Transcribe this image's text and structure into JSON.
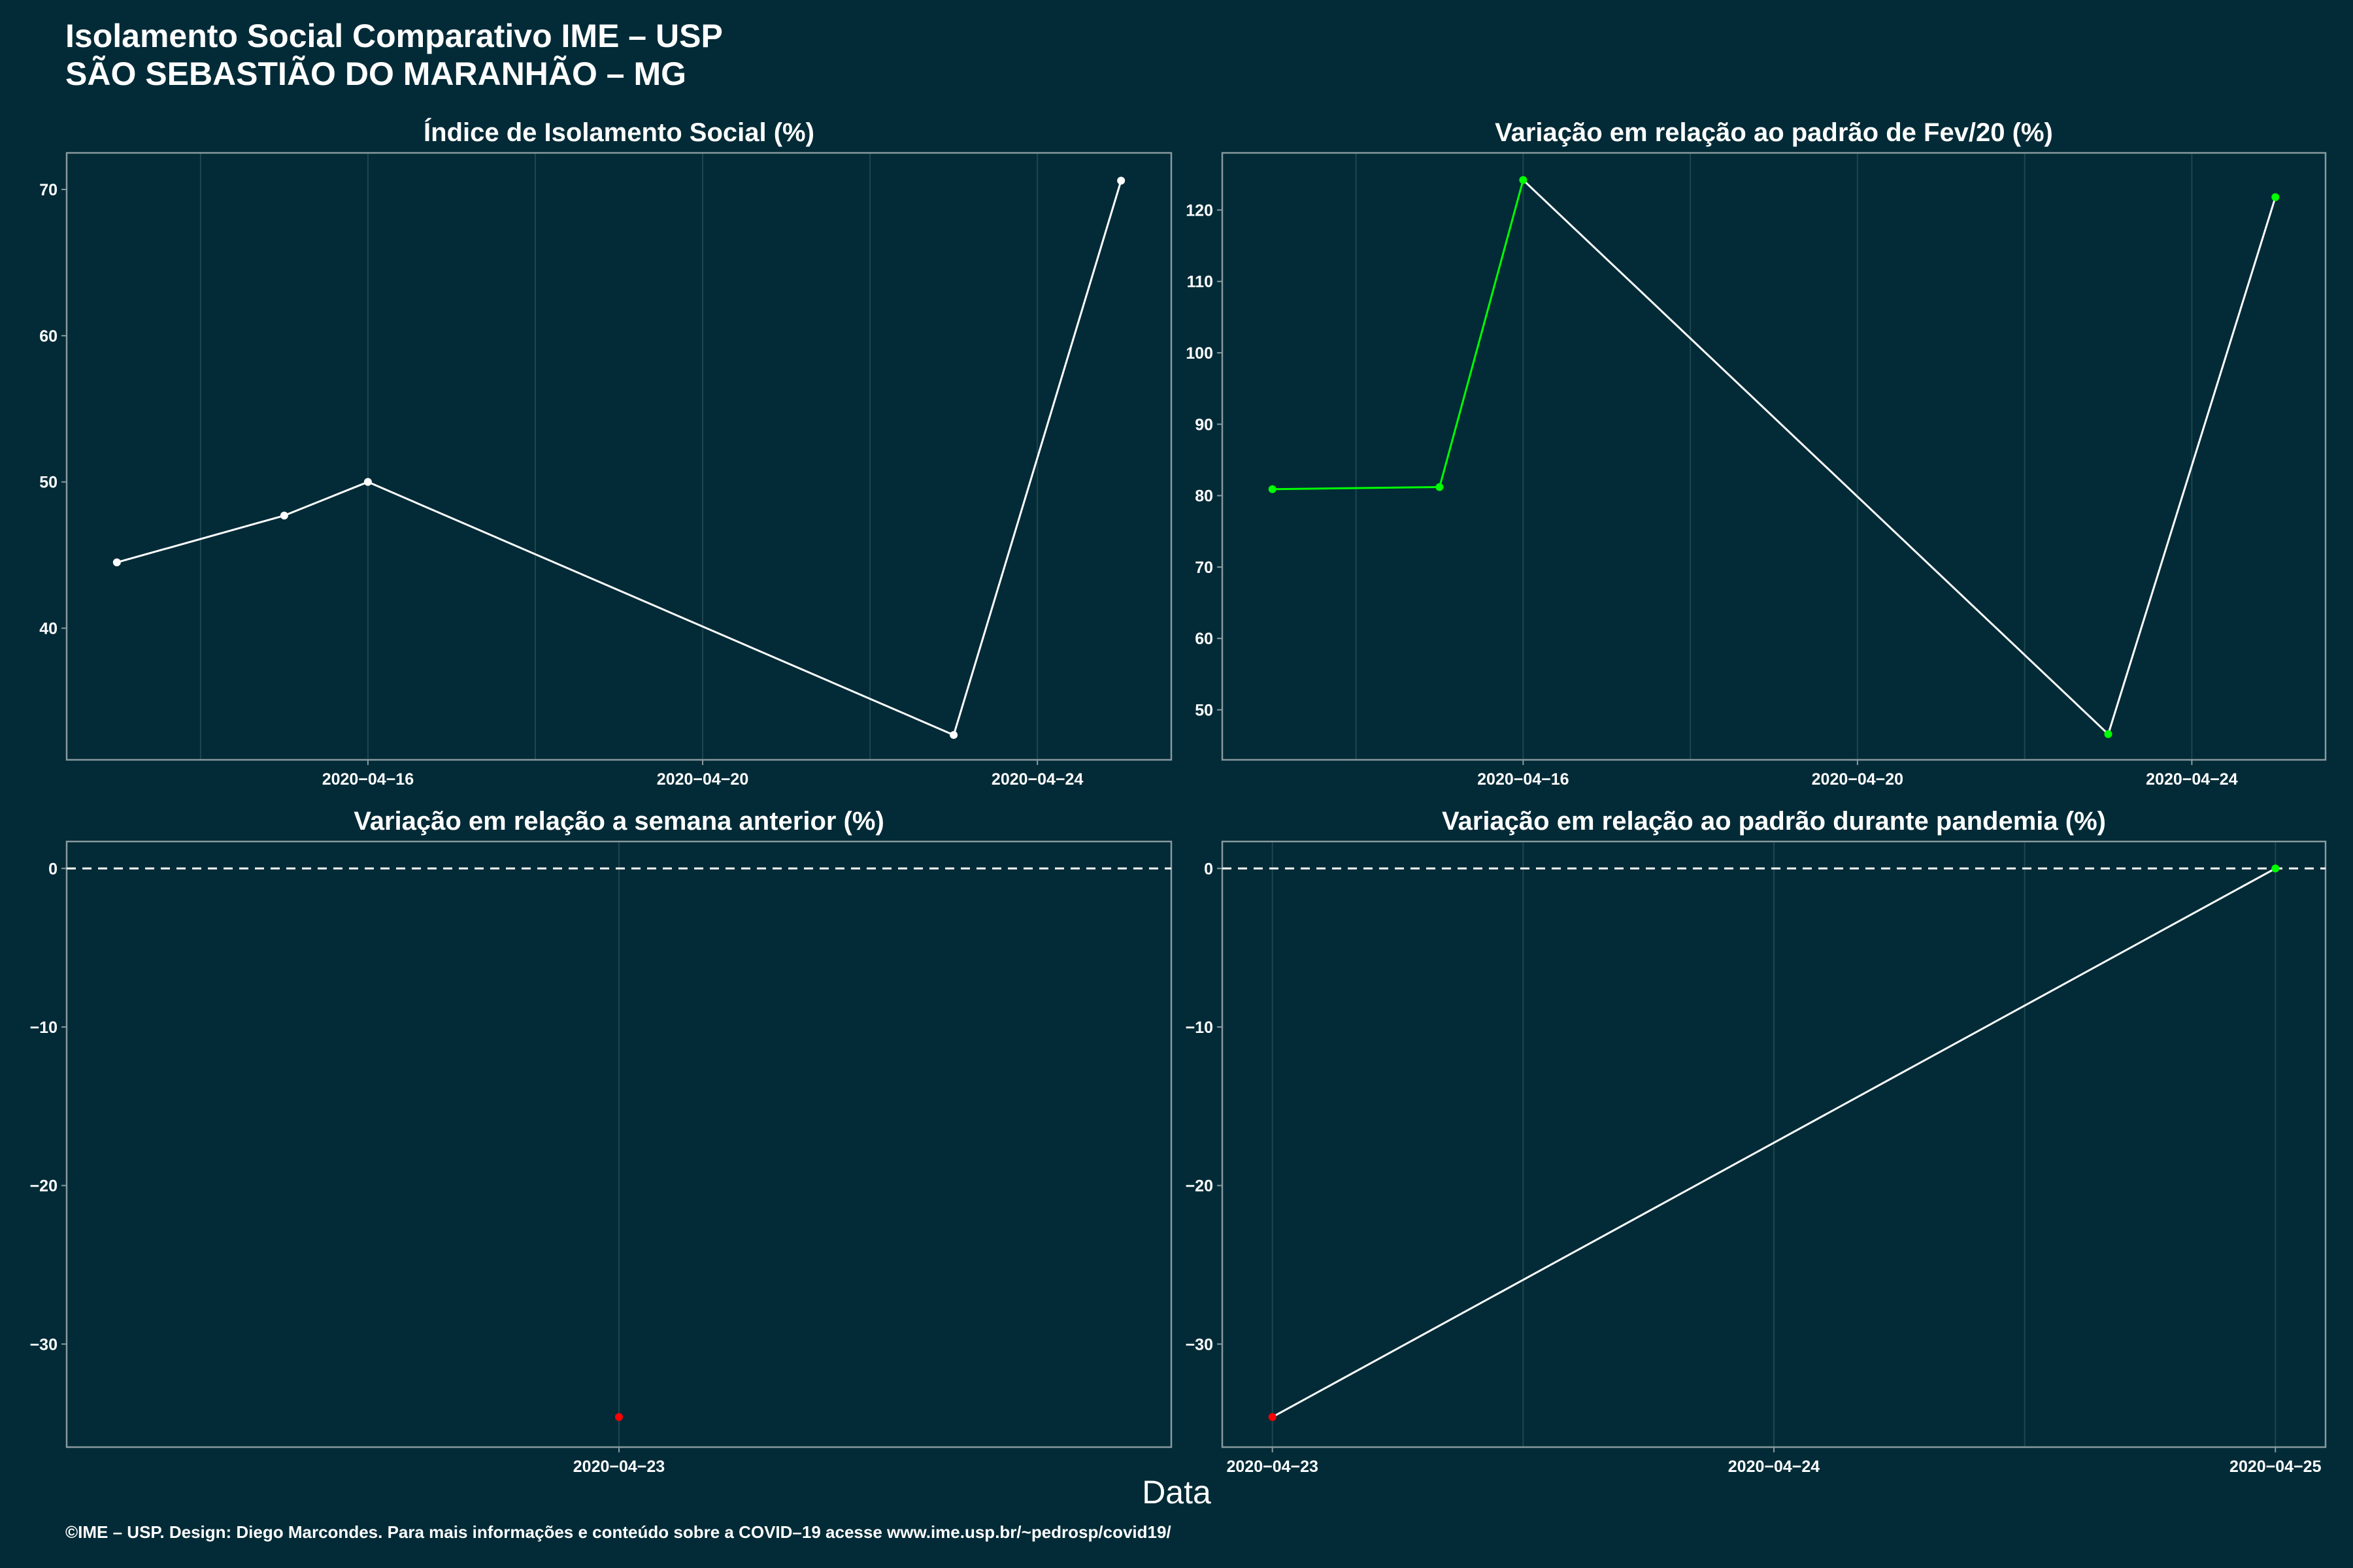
{
  "header": {
    "title_line1": "Isolamento Social Comparativo IME – USP",
    "title_line2": "SÃO SEBASTIÃO DO MARANHÃO – MG"
  },
  "footer": "©IME – USP. Design: Diego Marcondes. Para mais informações e conteúdo sobre a COVID–19 acesse www.ime.usp.br/~pedrosp/covid19/",
  "xlabel": "Data",
  "colors": {
    "background": "#022b37",
    "line": "#ffffff",
    "positive": "#00ff00",
    "negative": "#ff0000",
    "grid": "#1e4650",
    "frame": "#8a9a9e"
  },
  "chart_data": [
    {
      "type": "line",
      "title": "Índice de Isolamento Social (%)",
      "x": [
        "2020-04-13",
        "2020-04-15",
        "2020-04-16",
        "2020-04-23",
        "2020-04-25"
      ],
      "values": [
        44.5,
        47.7,
        50.0,
        32.7,
        70.6
      ],
      "point_colors": [
        "#ffffff",
        "#ffffff",
        "#ffffff",
        "#ffffff",
        "#ffffff"
      ],
      "xlim": [
        "2020-04-12.4",
        "2020-04-25.6"
      ],
      "ylim": [
        31,
        72.5
      ],
      "yticks": [
        40,
        50,
        60,
        70
      ],
      "xticks": [
        "2020-04-16",
        "2020-04-20",
        "2020-04-24"
      ],
      "grid": true
    },
    {
      "type": "line",
      "title": "Variação em relação ao padrão de Fev/20 (%)",
      "x": [
        "2020-04-13",
        "2020-04-15",
        "2020-04-16",
        "2020-04-23",
        "2020-04-25"
      ],
      "values": [
        80.9,
        81.2,
        124.2,
        46.6,
        121.8
      ],
      "point_colors": [
        "#00ff00",
        "#00ff00",
        "#00ff00",
        "#00ff00",
        "#00ff00"
      ],
      "segment_colors": [
        "#00ff00",
        "#00ff00",
        "#ffffff",
        "#ffffff"
      ],
      "ylim": [
        43,
        128
      ],
      "yticks": [
        50,
        60,
        70,
        80,
        90,
        100,
        110,
        120
      ],
      "xticks": [
        "2020-04-16",
        "2020-04-20",
        "2020-04-24"
      ],
      "grid": true
    },
    {
      "type": "scatter",
      "title": "Variação em relação a semana anterior (%)",
      "x": [
        "2020-04-23"
      ],
      "values": [
        -34.6
      ],
      "point_colors": [
        "#ff0000"
      ],
      "ylim": [
        -36.5,
        1.7
      ],
      "yticks": [
        0,
        -10,
        -20,
        -30
      ],
      "xticks": [
        "2020-04-23"
      ],
      "reference_line": 0,
      "grid": true
    },
    {
      "type": "line",
      "title": "Variação em relação ao padrão durante pandemia (%)",
      "x": [
        "2020-04-23",
        "2020-04-25"
      ],
      "values": [
        -34.6,
        0
      ],
      "point_colors": [
        "#ff0000",
        "#00ff00"
      ],
      "ylim": [
        -36.5,
        1.7
      ],
      "yticks": [
        0,
        -10,
        -20,
        -30
      ],
      "xticks": [
        "2020-04-23",
        "2020-04-24",
        "2020-04-25"
      ],
      "reference_line": 0,
      "grid": true
    }
  ]
}
